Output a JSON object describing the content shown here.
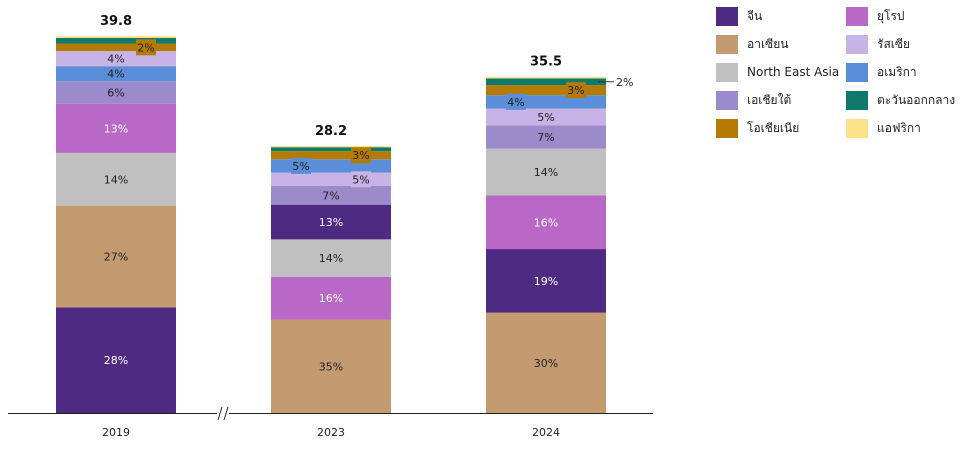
{
  "chart_data": {
    "type": "bar",
    "stacked": true,
    "categories": [
      "2019",
      "2023",
      "2024"
    ],
    "totals": [
      "39.8",
      "28.2",
      "35.5"
    ],
    "axis_break_after_category": "2019",
    "grid": false,
    "legend_position": "top-right",
    "bars": [
      {
        "category": "2019",
        "total": 39.8,
        "segments": [
          {
            "series": "จีน",
            "value": 28,
            "label": "28%"
          },
          {
            "series": "อาเซียน",
            "value": 27,
            "label": "27%"
          },
          {
            "series": "North East Asia",
            "value": 14,
            "label": "14%"
          },
          {
            "series": "ยุโรป",
            "value": 13,
            "label": "13%"
          },
          {
            "series": "เอเชียใต้",
            "value": 6,
            "label": "6%"
          },
          {
            "series": "อเมริกา",
            "value": 4,
            "label": "4%"
          },
          {
            "series": "รัสเซีย",
            "value": 4,
            "label": "4%"
          },
          {
            "series": "โอเชียเนีย",
            "value": 2,
            "label": "2%"
          },
          {
            "series": "ตะวันออกกลาง",
            "value": 1.5,
            "label": ""
          },
          {
            "series": "แอฟริกา",
            "value": 0.5,
            "label": ""
          }
        ]
      },
      {
        "category": "2023",
        "total": 28.2,
        "segments": [
          {
            "series": "อาเซียน",
            "value": 35,
            "label": "35%"
          },
          {
            "series": "ยุโรป",
            "value": 16,
            "label": "16%"
          },
          {
            "series": "North East Asia",
            "value": 14,
            "label": "14%"
          },
          {
            "series": "จีน",
            "value": 13,
            "label": "13%"
          },
          {
            "series": "เอเชียใต้",
            "value": 7,
            "label": "7%"
          },
          {
            "series": "รัสเซีย",
            "value": 5,
            "label": "5%"
          },
          {
            "series": "อเมริกา",
            "value": 5,
            "label": "5%"
          },
          {
            "series": "โอเชียเนีย",
            "value": 3,
            "label": "3%"
          },
          {
            "series": "ตะวันออกกลาง",
            "value": 1.5,
            "label": ""
          },
          {
            "series": "แอฟริกา",
            "value": 0.5,
            "label": ""
          }
        ]
      },
      {
        "category": "2024",
        "total": 35.5,
        "segments": [
          {
            "series": "อาเซียน",
            "value": 30,
            "label": "30%"
          },
          {
            "series": "จีน",
            "value": 19,
            "label": "19%"
          },
          {
            "series": "ยุโรป",
            "value": 16,
            "label": "16%"
          },
          {
            "series": "North East Asia",
            "value": 14,
            "label": "14%"
          },
          {
            "series": "เอเชียใต้",
            "value": 7,
            "label": "7%"
          },
          {
            "series": "รัสเซีย",
            "value": 5,
            "label": "5%"
          },
          {
            "series": "อเมริกา",
            "value": 4,
            "label": "4%"
          },
          {
            "series": "โอเชียเนีย",
            "value": 3,
            "label": "3%"
          },
          {
            "series": "ตะวันออกกลาง",
            "value": 2,
            "label": "2%"
          },
          {
            "series": "แอฟริกา",
            "value": 0.5,
            "label": ""
          }
        ]
      }
    ]
  },
  "legend": {
    "items": [
      {
        "name": "จีน",
        "color": "#4e2a82"
      },
      {
        "name": "ยุโรป",
        "color": "#b968c8"
      },
      {
        "name": "อาเซียน",
        "color": "#c49a70"
      },
      {
        "name": "รัสเซีย",
        "color": "#c7b3e5"
      },
      {
        "name": "North East Asia",
        "color": "#c0c0c0"
      },
      {
        "name": "อเมริกา",
        "color": "#5b8ed8"
      },
      {
        "name": "เอเชียใต้",
        "color": "#9c8bca"
      },
      {
        "name": "ตะวันออกกลาง",
        "color": "#0f7a6c"
      },
      {
        "name": "โอเชียเนีย",
        "color": "#b57b00"
      },
      {
        "name": "แอฟริกา",
        "color": "#fce28a"
      }
    ]
  }
}
